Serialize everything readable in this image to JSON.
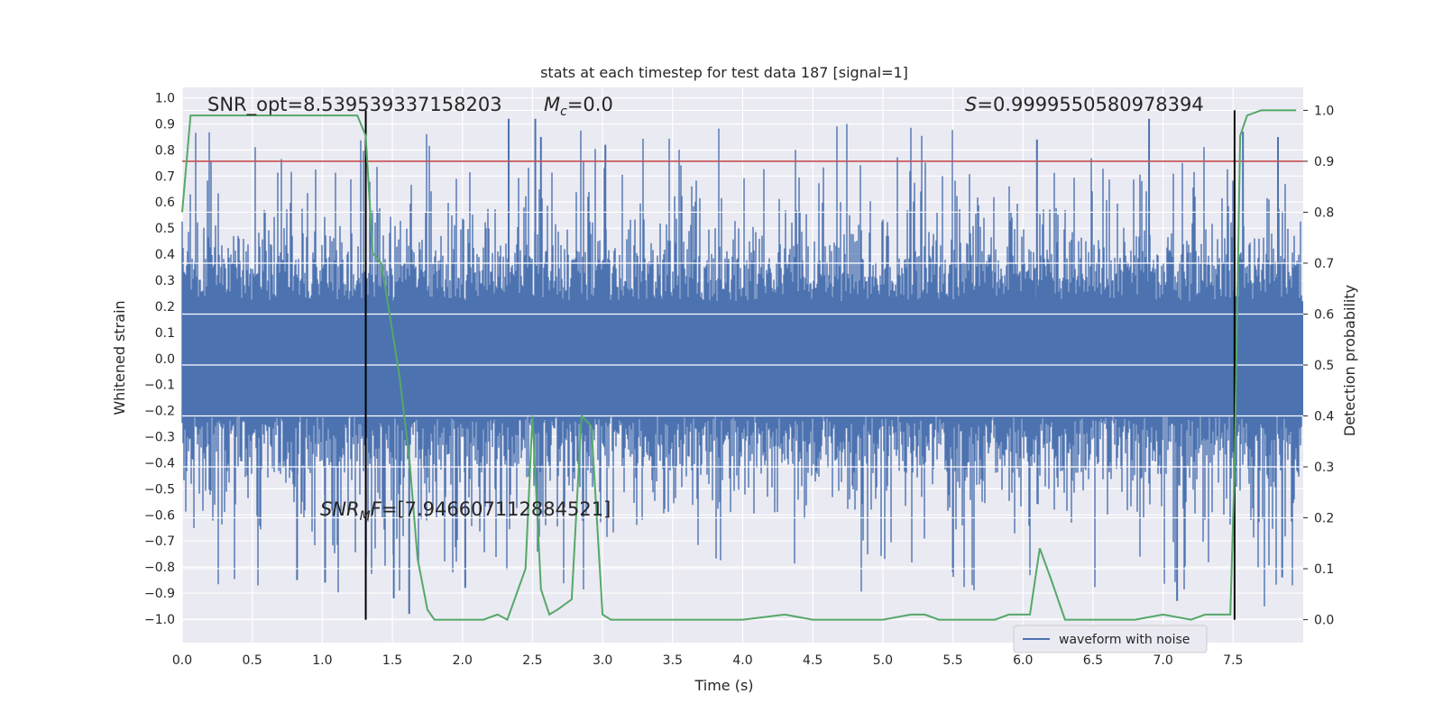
{
  "chart_data": {
    "type": "line",
    "title": "stats at each timestep for test data 187 [signal=1]",
    "xlabel": "Time (s)",
    "ylabel_left": "Whitened strain",
    "ylabel_right": "Detection probability",
    "xlim": [
      0.0,
      8.0
    ],
    "ylim_left": [
      -1.09,
      1.04
    ],
    "ylim_right": [
      -0.045,
      1.045
    ],
    "x_ticks": [
      "0.0",
      "0.5",
      "1.0",
      "1.5",
      "2.0",
      "2.5",
      "3.0",
      "3.5",
      "4.0",
      "4.5",
      "5.0",
      "5.5",
      "6.0",
      "6.5",
      "7.0",
      "7.5"
    ],
    "y_left_ticks": [
      "1.0",
      "0.9",
      "0.8",
      "0.7",
      "0.6",
      "0.5",
      "0.4",
      "0.3",
      "0.2",
      "0.1",
      "0.0",
      "−0.1",
      "−0.2",
      "−0.3",
      "−0.4",
      "−0.5",
      "−0.6",
      "−0.7",
      "−0.8",
      "−0.9",
      "−1.0"
    ],
    "y_right_ticks": [
      "1.0",
      "0.9",
      "0.8",
      "0.7",
      "0.6",
      "0.5",
      "0.4",
      "0.3",
      "0.2",
      "0.1",
      "0.0"
    ],
    "grid": true,
    "background": "#eaeaf2",
    "colors": {
      "waveform": "#4c72b0",
      "probability": "#55a868",
      "threshold": "#c44e52",
      "markers": "#000000"
    },
    "annotations": {
      "snr_opt": "SNR_opt=8.539539337158203",
      "mc": "=0.0",
      "mc_symbol": "M",
      "mc_sub": "c",
      "s_value": "=0.9999550580978394",
      "s_symbol": "S",
      "snr_mf": "=[7.946607112884521]",
      "snr_mf_symbol": "SNR",
      "snr_mf_sub": "M",
      "snr_mf_symbol2": "F"
    },
    "threshold_probability": 0.9,
    "detection_lines_x": [
      1.31,
      7.51
    ],
    "waveform": {
      "name": "waveform with noise",
      "sample_rate_description": "dense noise, |strain| mostly within ±0.45, peaks to ±1.0"
    },
    "probability_series": {
      "name": "detection probability",
      "x": [
        0.0,
        0.06,
        0.12,
        0.2,
        0.3,
        0.5,
        0.7,
        0.9,
        1.1,
        1.25,
        1.31,
        1.36,
        1.42,
        1.48,
        1.55,
        1.62,
        1.68,
        1.75,
        1.8,
        1.85,
        1.95,
        2.05,
        2.15,
        2.25,
        2.32,
        2.45,
        2.5,
        2.56,
        2.62,
        2.68,
        2.78,
        2.85,
        2.92,
        3.0,
        3.06,
        3.12,
        3.17,
        3.3,
        3.5,
        3.8,
        4.0,
        4.3,
        4.5,
        4.8,
        5.0,
        5.2,
        5.3,
        5.4,
        5.6,
        5.8,
        5.9,
        5.98,
        6.05,
        6.12,
        6.2,
        6.3,
        6.45,
        6.6,
        6.8,
        7.0,
        7.2,
        7.3,
        7.4,
        7.48,
        7.51,
        7.55,
        7.6,
        7.7,
        7.8,
        7.95
      ],
      "values": [
        0.8,
        0.99,
        0.99,
        0.99,
        0.99,
        0.99,
        0.99,
        0.99,
        0.99,
        0.99,
        0.95,
        0.72,
        0.7,
        0.6,
        0.48,
        0.32,
        0.12,
        0.02,
        0.0,
        0.0,
        0.0,
        0.0,
        0.0,
        0.01,
        0.0,
        0.1,
        0.4,
        0.06,
        0.01,
        0.02,
        0.04,
        0.4,
        0.38,
        0.01,
        0.0,
        0.0,
        0.0,
        0.0,
        0.0,
        0.0,
        0.0,
        0.01,
        0.0,
        0.0,
        0.0,
        0.01,
        0.01,
        0.0,
        0.0,
        0.0,
        0.01,
        0.01,
        0.01,
        0.14,
        0.08,
        0.0,
        0.0,
        0.0,
        0.0,
        0.01,
        0.0,
        0.01,
        0.01,
        0.01,
        0.3,
        0.95,
        0.99,
        1.0,
        1.0,
        1.0
      ]
    },
    "legend": {
      "placement": "bottom-right",
      "entries": [
        "waveform with noise"
      ]
    }
  }
}
